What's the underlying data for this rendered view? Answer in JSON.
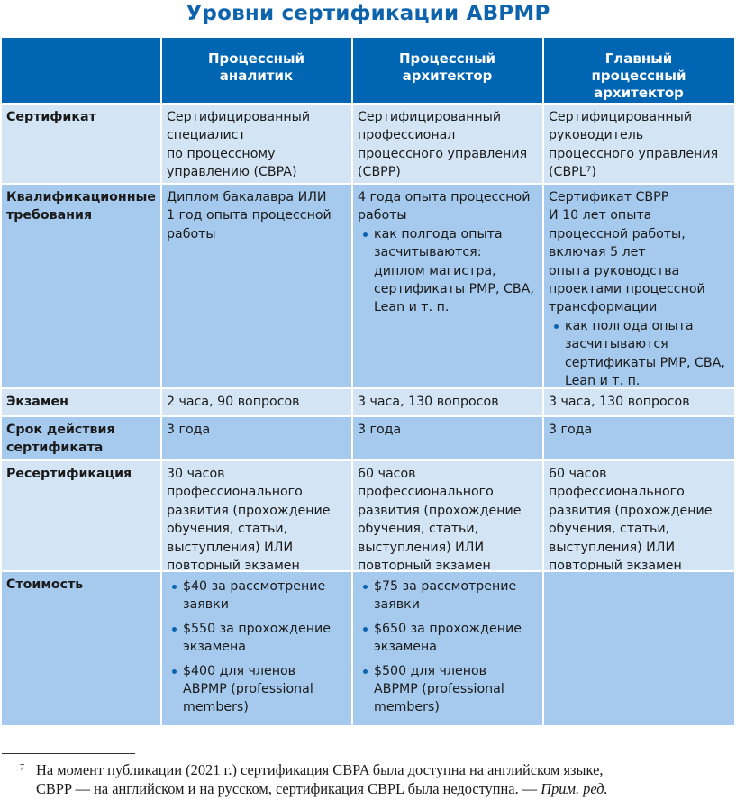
{
  "title": "Уровни сертификации ABPMP",
  "columns": [
    "",
    "Процессный\nаналитик",
    "Процессный\nархитектор",
    "Главный\nпроцессный\nархитектор"
  ],
  "rows": [
    {
      "label": "Сертификат",
      "cells": [
        {
          "text": "Сертифицированный\nспециалист\nпо процессному\nуправлению (CBPA)"
        },
        {
          "text": "Сертифицированный\nпрофессионал\nпроцессного управления\n(CBPP)"
        },
        {
          "text": "Сертифицированный\nруководитель\nпроцессного управления\n(CBPL⁷)"
        }
      ]
    },
    {
      "label": "Квалификационные\nтребования",
      "cells": [
        {
          "text": "Диплом бакалавра ИЛИ\n1 год опыта процессной\nработы"
        },
        {
          "text": "4 года опыта процессной\nработы",
          "bullets": [
            "как полгода опыта\nзасчитываются:\nдиплом магистра,\nсертификаты PMP, CBA,\nLean и т. п."
          ]
        },
        {
          "text": "Сертификат CBPP\nИ 10 лет опыта\nпроцессной работы,\nвключая 5 лет\nопыта руководства\nпроектами процессной\nтрансформации",
          "bullets": [
            "как полгода опыта\nзасчитываются\nсертификаты PMP, CBA,\nLean и т. п."
          ]
        }
      ]
    },
    {
      "label": "Экзамен",
      "cells": [
        {
          "text": "2 часа, 90 вопросов"
        },
        {
          "text": "3 часа, 130 вопросов"
        },
        {
          "text": "3 часа, 130 вопросов"
        }
      ]
    },
    {
      "label": "Срок действия\nсертификата",
      "cells": [
        {
          "text": "3 года"
        },
        {
          "text": "3 года"
        },
        {
          "text": "3 года"
        }
      ]
    },
    {
      "label": "Ресертификация",
      "cells": [
        {
          "text": "30 часов\nпрофессионального\nразвития (прохождение\nобучения, статьи,\nвыступления) ИЛИ\nповторный экзамен"
        },
        {
          "text": "60 часов\nпрофессионального\nразвития (прохождение\nобучения, статьи,\nвыступления) ИЛИ\nповторный экзамен"
        },
        {
          "text": "60 часов\nпрофессионального\nразвития (прохождение\nобучения, статьи,\nвыступления) ИЛИ\nповторный экзамен"
        }
      ]
    },
    {
      "label": "Стоимость",
      "cells": [
        {
          "text": "",
          "bullets": [
            "$40 за рассмотрение\nзаявки",
            "$550 за прохождение\nэкзамена",
            "$400 для членов\nABPMP (professional\nmembers)"
          ]
        },
        {
          "text": "",
          "bullets": [
            "$75 за рассмотрение\nзаявки",
            "$650 за прохождение\nэкзамена",
            "$500 для членов\nABPMP (professional\nmembers)"
          ]
        },
        {
          "text": ""
        }
      ]
    }
  ],
  "footnote": {
    "marker": "7",
    "text": "На момент публикации (2021 г.) сертификация CBPA была доступна на английском языке,\nCBPP — на английском и на русском, сертификация CBPL была недоступна. — ",
    "note": "Прим. ред."
  },
  "colors": {
    "header": "#0066b3",
    "row_light": "#d3e4f5",
    "row_dark": "#a6caee",
    "title": "#0e63ad"
  }
}
